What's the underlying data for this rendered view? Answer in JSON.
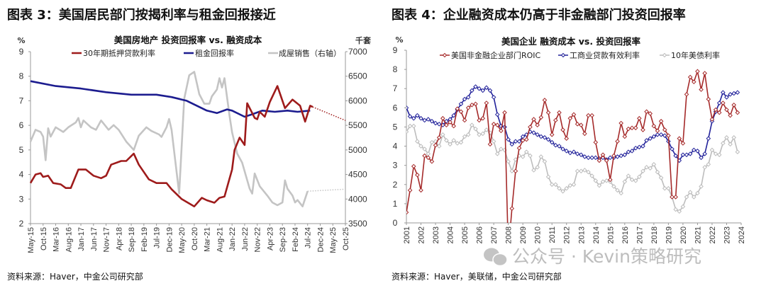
{
  "figures": [
    {
      "label": "图表 3：美国居民部门按揭利率与租金回报接近",
      "source": "资料来源：Haver，中金公司研究部"
    },
    {
      "label": "图表 4：企业融资成本仍高于非金融部门投资回报率",
      "source": "资料来源：Haver，美联储，中金公司研究部"
    }
  ],
  "watermark": "公众号 · Kevin策略研究",
  "chart_data": [
    {
      "type": "line",
      "title": "美国房地产 投资回报率 vs. 融资成本",
      "ylabel": "%",
      "y2label": "千套",
      "ylim": [
        2,
        9
      ],
      "y2lim": [
        3500,
        7000
      ],
      "yticks": [
        "2",
        "3",
        "4",
        "5",
        "6",
        "7",
        "8",
        "9"
      ],
      "y2ticks": [
        "3500",
        "4000",
        "4500",
        "5000",
        "5500",
        "6000",
        "6500",
        "7000"
      ],
      "xlim": [
        "2015-05",
        "2025-10"
      ],
      "xtick_labels": [
        "May-15",
        "Oct-15",
        "Mar-16",
        "Aug-16",
        "Jan-17",
        "Jun-17",
        "Nov-17",
        "Apr-18",
        "Sep-18",
        "Feb-19",
        "Jul-19",
        "Dec-19",
        "May-20",
        "Oct-20",
        "Mar-21",
        "Aug-21",
        "Jan-22",
        "Jun-22",
        "Nov-22",
        "Apr-23",
        "Sep-23",
        "Feb-24",
        "Jul-24",
        "Dec-24",
        "May-25",
        "Oct-25"
      ],
      "grid": false,
      "legend_position": "top",
      "series": [
        {
          "name": "30年期抵押贷款利率",
          "axis": "left",
          "color": "#9E1B1B",
          "points": [
            [
              "2015-05",
              3.65
            ],
            [
              "2015-07",
              4.0
            ],
            [
              "2015-09",
              4.05
            ],
            [
              "2015-10",
              3.9
            ],
            [
              "2015-12",
              3.95
            ],
            [
              "2016-02",
              3.65
            ],
            [
              "2016-05",
              3.6
            ],
            [
              "2016-07",
              3.45
            ],
            [
              "2016-09",
              3.45
            ],
            [
              "2016-12",
              4.2
            ],
            [
              "2017-03",
              4.2
            ],
            [
              "2017-06",
              3.95
            ],
            [
              "2017-09",
              3.85
            ],
            [
              "2017-11",
              3.95
            ],
            [
              "2018-01",
              4.4
            ],
            [
              "2018-05",
              4.55
            ],
            [
              "2018-07",
              4.55
            ],
            [
              "2018-10",
              4.85
            ],
            [
              "2018-12",
              4.4
            ],
            [
              "2019-04",
              3.8
            ],
            [
              "2019-07",
              3.65
            ],
            [
              "2019-11",
              3.65
            ],
            [
              "2020-01",
              3.4
            ],
            [
              "2020-05",
              3.0
            ],
            [
              "2020-10",
              2.7
            ],
            [
              "2021-01",
              3.05
            ],
            [
              "2021-03",
              2.95
            ],
            [
              "2021-06",
              2.85
            ],
            [
              "2021-08",
              3.05
            ],
            [
              "2021-10",
              3.1
            ],
            [
              "2022-01",
              4.2
            ],
            [
              "2022-02",
              5.0
            ],
            [
              "2022-04",
              5.5
            ],
            [
              "2022-06",
              5.2
            ],
            [
              "2022-07",
              6.9
            ],
            [
              "2022-10",
              6.3
            ],
            [
              "2022-11",
              6.25
            ],
            [
              "2022-12",
              6.55
            ],
            [
              "2023-02",
              6.35
            ],
            [
              "2023-04",
              6.95
            ],
            [
              "2023-07",
              7.6
            ],
            [
              "2023-10",
              6.7
            ],
            [
              "2024-01",
              7.05
            ],
            [
              "2024-04",
              6.8
            ],
            [
              "2024-06",
              6.15
            ],
            [
              "2024-08",
              6.8
            ],
            [
              "2024-09",
              6.75
            ]
          ],
          "projection": [
            [
              "2024-09",
              6.75
            ],
            [
              "2025-10",
              6.2
            ]
          ]
        },
        {
          "name": "租金回报率",
          "axis": "left",
          "color": "#1C1C8F",
          "points": [
            [
              "2015-05",
              7.8
            ],
            [
              "2016-03",
              7.6
            ],
            [
              "2017-01",
              7.5
            ],
            [
              "2017-11",
              7.35
            ],
            [
              "2018-09",
              7.25
            ],
            [
              "2019-07",
              7.25
            ],
            [
              "2020-01",
              7.15
            ],
            [
              "2020-07",
              7.0
            ],
            [
              "2021-03",
              6.6
            ],
            [
              "2021-07",
              6.5
            ],
            [
              "2021-11",
              6.65
            ],
            [
              "2022-01",
              6.6
            ],
            [
              "2022-06",
              6.35
            ],
            [
              "2022-09",
              6.45
            ],
            [
              "2023-01",
              6.6
            ],
            [
              "2023-06",
              6.55
            ],
            [
              "2023-11",
              6.6
            ],
            [
              "2024-03",
              6.55
            ],
            [
              "2024-08",
              6.6
            ]
          ]
        },
        {
          "name": "成屋销售（右轴）",
          "axis": "right",
          "color": "#C4C4C4",
          "points": [
            [
              "2015-05",
              5170
            ],
            [
              "2015-07",
              5410
            ],
            [
              "2015-09",
              5365
            ],
            [
              "2015-10",
              5270
            ],
            [
              "2015-11",
              4790
            ],
            [
              "2015-12",
              5440
            ],
            [
              "2016-01",
              5270
            ],
            [
              "2016-03",
              5460
            ],
            [
              "2016-06",
              5365
            ],
            [
              "2016-08",
              5460
            ],
            [
              "2016-11",
              5560
            ],
            [
              "2016-12",
              5650
            ],
            [
              "2017-01",
              5460
            ],
            [
              "2017-02",
              5600
            ],
            [
              "2017-05",
              5460
            ],
            [
              "2017-07",
              5410
            ],
            [
              "2017-09",
              5600
            ],
            [
              "2017-12",
              5410
            ],
            [
              "2018-02",
              5505
            ],
            [
              "2018-04",
              5410
            ],
            [
              "2018-07",
              5170
            ],
            [
              "2018-10",
              5000
            ],
            [
              "2018-12",
              5290
            ],
            [
              "2019-03",
              5460
            ],
            [
              "2019-05",
              5385
            ],
            [
              "2019-08",
              5315
            ],
            [
              "2019-09",
              5265
            ],
            [
              "2019-11",
              5460
            ],
            [
              "2019-12",
              5630
            ],
            [
              "2020-01",
              5410
            ],
            [
              "2020-04",
              4115
            ],
            [
              "2020-06",
              6040
            ],
            [
              "2020-08",
              6520
            ],
            [
              "2020-10",
              6590
            ],
            [
              "2020-12",
              6135
            ],
            [
              "2021-02",
              5940
            ],
            [
              "2021-04",
              5940
            ],
            [
              "2021-05",
              6090
            ],
            [
              "2021-07",
              6230
            ],
            [
              "2021-08",
              6460
            ],
            [
              "2021-09",
              6270
            ],
            [
              "2021-10",
              6460
            ],
            [
              "2021-12",
              5700
            ],
            [
              "2022-01",
              5360
            ],
            [
              "2022-03",
              4930
            ],
            [
              "2022-05",
              4740
            ],
            [
              "2022-08",
              4210
            ],
            [
              "2022-09",
              4110
            ],
            [
              "2022-10",
              4520
            ],
            [
              "2022-12",
              4260
            ],
            [
              "2023-03",
              4070
            ],
            [
              "2023-05",
              3930
            ],
            [
              "2023-07",
              3875
            ],
            [
              "2023-09",
              3930
            ],
            [
              "2023-10",
              4380
            ],
            [
              "2023-11",
              4210
            ],
            [
              "2024-01",
              4070
            ],
            [
              "2024-02",
              3930
            ],
            [
              "2024-03",
              3980
            ],
            [
              "2024-05",
              3850
            ],
            [
              "2024-07",
              4160
            ]
          ],
          "projection": [
            [
              "2024-07",
              4160
            ],
            [
              "2025-10",
              4200
            ]
          ]
        }
      ]
    },
    {
      "type": "line",
      "title": "美国企业 融资成本 vs. 投资回报率",
      "ylabel": "%",
      "ylim": [
        0,
        9
      ],
      "yticks": [
        "0",
        "1",
        "2",
        "3",
        "4",
        "5",
        "6",
        "7",
        "8",
        "9"
      ],
      "xlim": [
        2001,
        2024
      ],
      "xtick_labels": [
        "2001",
        "2002",
        "2003",
        "2004",
        "2005",
        "2006",
        "2007",
        "2008",
        "2009",
        "2010",
        "2011",
        "2012",
        "2013",
        "2014",
        "2015",
        "2016",
        "2017",
        "2018",
        "2019",
        "2020",
        "2021",
        "2022",
        "2023",
        "2024"
      ],
      "grid": false,
      "legend_position": "top",
      "x": [
        2001,
        2001.25,
        2001.5,
        2001.75,
        2002,
        2002.25,
        2002.5,
        2002.75,
        2003,
        2003.25,
        2003.5,
        2003.75,
        2004,
        2004.25,
        2004.5,
        2004.75,
        2005,
        2005.25,
        2005.5,
        2005.75,
        2006,
        2006.25,
        2006.5,
        2006.75,
        2007,
        2007.25,
        2007.5,
        2007.75,
        2008,
        2008.25,
        2008.5,
        2008.75,
        2009,
        2009.25,
        2009.5,
        2009.75,
        2010,
        2010.25,
        2010.5,
        2010.75,
        2011,
        2011.25,
        2011.5,
        2011.75,
        2012,
        2012.25,
        2012.5,
        2012.75,
        2013,
        2013.25,
        2013.5,
        2013.75,
        2014,
        2014.25,
        2014.5,
        2014.75,
        2015,
        2015.25,
        2015.5,
        2015.75,
        2016,
        2016.25,
        2016.5,
        2016.75,
        2017,
        2017.25,
        2017.5,
        2017.75,
        2018,
        2018.25,
        2018.5,
        2018.75,
        2019,
        2019.25,
        2019.5,
        2019.75,
        2020,
        2020.25,
        2020.5,
        2020.75,
        2021,
        2021.25,
        2021.5,
        2021.75,
        2022,
        2022.25,
        2022.5,
        2022.75,
        2023,
        2023.25,
        2023.5,
        2023.75
      ],
      "series": [
        {
          "name": "美国非金融企业部门ROIC",
          "color": "#A52A2A",
          "values": [
            0.55,
            1.7,
            2.95,
            2.5,
            1.7,
            3.5,
            3.4,
            3.2,
            4.05,
            4.45,
            5.45,
            5.1,
            5.25,
            5.05,
            5.95,
            5.8,
            5.35,
            6.0,
            6.15,
            6.2,
            5.35,
            5.45,
            6.25,
            4.1,
            5.15,
            5.1,
            4.8,
            5.75,
            -1.5,
            0.75,
            2.7,
            3.9,
            4.3,
            4.35,
            5.0,
            5.4,
            5.1,
            5.5,
            6.4,
            5.75,
            4.6,
            5.35,
            5.75,
            4.85,
            4.4,
            5.45,
            5.65,
            5.15,
            5.1,
            4.65,
            5.6,
            5.6,
            4.2,
            3.25,
            3.55,
            3.25,
            2.25,
            3.5,
            4.25,
            5.2,
            4.5,
            4.9,
            4.95,
            4.95,
            5.45,
            4.85,
            5.8,
            5.7,
            5.05,
            4.8,
            5.3,
            4.85,
            4.55,
            1.35,
            1.35,
            4.4,
            4.15,
            6.7,
            7.6,
            7.35,
            7.9,
            6.95,
            7.8,
            6.45,
            5.4,
            5.9,
            5.75,
            6.25,
            5.9,
            5.6,
            6.15,
            5.75
          ]
        },
        {
          "name": "工商业贷款有效利率",
          "color": "#22229A",
          "values": [
            6.0,
            5.55,
            5.45,
            5.6,
            5.45,
            5.35,
            5.4,
            5.3,
            5.2,
            5.15,
            5.1,
            5.3,
            5.4,
            5.6,
            5.9,
            6.2,
            6.45,
            6.55,
            6.9,
            7.1,
            7.0,
            6.9,
            7.05,
            6.9,
            6.55,
            5.65,
            5.05,
            5.0,
            4.35,
            4.1,
            4.25,
            4.25,
            4.5,
            4.6,
            4.75,
            4.7,
            4.6,
            4.5,
            4.45,
            4.35,
            4.2,
            4.05,
            4.0,
            3.85,
            3.75,
            3.65,
            3.7,
            3.6,
            3.55,
            3.45,
            3.4,
            3.4,
            3.4,
            3.35,
            3.4,
            3.3,
            3.4,
            3.4,
            3.45,
            3.5,
            3.55,
            3.7,
            3.75,
            3.9,
            3.95,
            4.0,
            4.3,
            4.4,
            4.5,
            4.6,
            4.6,
            4.55,
            4.25,
            3.85,
            3.5,
            3.25,
            3.55,
            3.55,
            3.6,
            3.8,
            3.75,
            3.4,
            3.6,
            4.4,
            5.3,
            5.8,
            6.25,
            6.8,
            6.55,
            6.7,
            6.75,
            6.8
          ]
        },
        {
          "name": "10年美债利率",
          "color": "#BDBDBD",
          "values": [
            4.75,
            5.05,
            5.05,
            4.25,
            4.0,
            3.85,
            3.6,
            4.2,
            4.25,
            4.0,
            4.6,
            4.3,
            4.1,
            4.3,
            4.15,
            4.2,
            4.5,
            4.6,
            5.1,
            4.9,
            4.6,
            4.65,
            4.85,
            4.7,
            4.25,
            3.6,
            3.85,
            3.8,
            3.2,
            2.7,
            3.3,
            3.5,
            3.45,
            3.7,
            3.5,
            2.75,
            2.9,
            3.45,
            3.2,
            2.4,
            2.0,
            2.0,
            1.8,
            1.65,
            1.8,
            1.95,
            2.0,
            2.7,
            2.7,
            2.75,
            2.65,
            2.45,
            2.2,
            1.95,
            2.15,
            2.2,
            2.15,
            1.9,
            1.7,
            1.55,
            2.15,
            2.45,
            2.25,
            2.2,
            2.4,
            2.7,
            2.9,
            2.85,
            3.05,
            2.65,
            2.35,
            1.8,
            1.8,
            1.35,
            0.7,
            0.6,
            0.85,
            1.35,
            1.6,
            1.35,
            1.55,
            1.9,
            2.9,
            3.05,
            3.8,
            3.6,
            3.55,
            4.15,
            4.45,
            4.1,
            4.45,
            3.7
          ]
        }
      ]
    }
  ]
}
